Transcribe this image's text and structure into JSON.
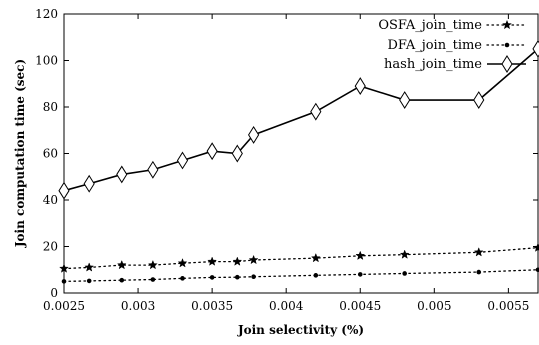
{
  "chart_data": {
    "type": "line",
    "title": "",
    "xlabel": "Join selectivity (%)",
    "ylabel": "Join computation time (sec)",
    "xlim": [
      0.0025,
      0.0057
    ],
    "ylim": [
      0,
      120
    ],
    "xticks": [
      0.0025,
      0.003,
      0.0035,
      0.004,
      0.0045,
      0.005,
      0.0055
    ],
    "xtick_labels": [
      "0.0025",
      "0.003",
      "0.0035",
      "0.004",
      "0.0045",
      "0.005",
      "0.0055"
    ],
    "yticks": [
      0,
      20,
      40,
      60,
      80,
      100,
      120
    ],
    "ytick_labels": [
      "0",
      "20",
      "40",
      "60",
      "80",
      "100",
      "120"
    ],
    "grid": false,
    "legend_position": "top-right",
    "series": [
      {
        "name": "OSFA_join_time",
        "style": "dotted",
        "marker": "star",
        "color": "#000000",
        "x": [
          0.0025,
          0.00267,
          0.00289,
          0.0031,
          0.0033,
          0.0035,
          0.00367,
          0.00378,
          0.0042,
          0.0045,
          0.0048,
          0.0053,
          0.0057
        ],
        "y": [
          10.5,
          11,
          12,
          12,
          12.8,
          13.5,
          13.5,
          14.2,
          15,
          16,
          16.5,
          17.5,
          19.5
        ]
      },
      {
        "name": "DFA_join_time",
        "style": "dotted",
        "marker": "dot",
        "color": "#000000",
        "x": [
          0.0025,
          0.00267,
          0.00289,
          0.0031,
          0.0033,
          0.0035,
          0.00367,
          0.00378,
          0.0042,
          0.0045,
          0.0048,
          0.0053,
          0.0057
        ],
        "y": [
          5,
          5.2,
          5.5,
          5.8,
          6.3,
          6.7,
          6.8,
          7,
          7.6,
          8,
          8.4,
          9,
          10
        ]
      },
      {
        "name": "hash_join_time",
        "style": "solid",
        "marker": "diamond",
        "color": "#000000",
        "x": [
          0.0025,
          0.00267,
          0.00289,
          0.0031,
          0.0033,
          0.0035,
          0.00367,
          0.00378,
          0.0042,
          0.0045,
          0.0048,
          0.0053,
          0.0057
        ],
        "y": [
          44,
          47,
          51,
          53,
          57,
          61,
          60,
          68,
          78,
          89,
          83,
          83,
          105
        ]
      }
    ]
  }
}
